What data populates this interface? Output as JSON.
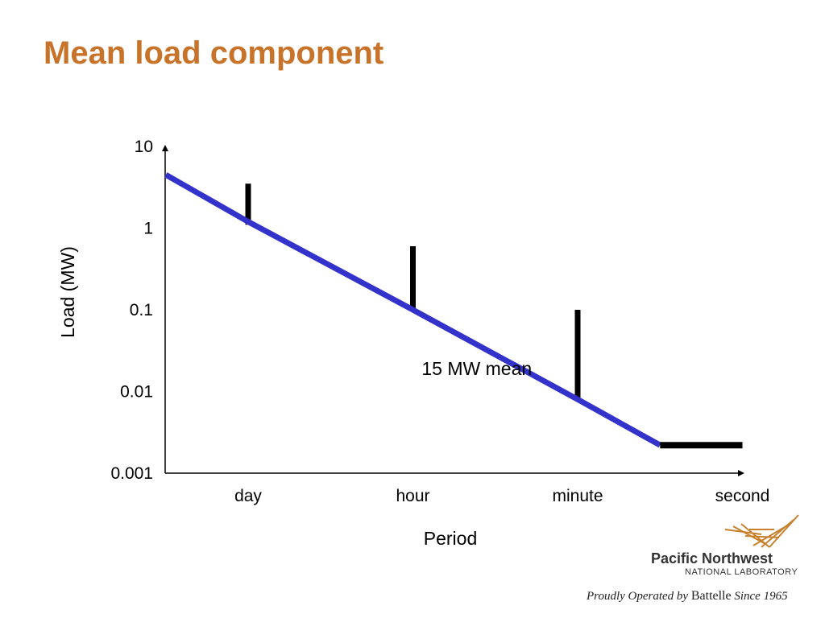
{
  "slide": {
    "title": "Mean load component"
  },
  "chart_data": {
    "type": "line",
    "title": "",
    "xlabel": "Period",
    "ylabel": "Load (MW)",
    "y_scale": "log",
    "ylim": [
      0.001,
      10
    ],
    "y_ticks": [
      "10",
      "1",
      "0.1",
      "0.01",
      "0.001"
    ],
    "y_tick_values": [
      10,
      1,
      0.1,
      0.01,
      0.001
    ],
    "categories": [
      "day",
      "hour",
      "minute",
      "second"
    ],
    "series": [
      {
        "color": "#3333cc",
        "x": [
          -0.5,
          0,
          1,
          2,
          2.5
        ],
        "y": [
          4.5,
          1.2,
          0.1,
          0.008,
          0.0022
        ]
      },
      {
        "color": "#000000",
        "x": [
          2.5,
          3
        ],
        "y": [
          0.0022,
          0.0022
        ]
      }
    ],
    "variability_bars": [
      {
        "category": "day",
        "low": 1.1,
        "high": 3.5,
        "color": "#000000"
      },
      {
        "category": "hour",
        "low": 0.1,
        "high": 0.6,
        "color": "#000000"
      },
      {
        "category": "minute",
        "low": 0.008,
        "high": 0.1,
        "color": "#000000"
      }
    ],
    "annotations": [
      {
        "text": "15 MW mean",
        "x": 1.2,
        "y": 0.02
      }
    ],
    "grid": false,
    "legend": "none"
  },
  "footer": {
    "logo_name": "Pacific Northwest",
    "logo_sub": "NATIONAL LABORATORY",
    "tagline_prefix": "Proudly Operated by ",
    "tagline_brand": "Battelle",
    "tagline_suffix": " Since 1965",
    "logo_color": "#c8822f"
  }
}
